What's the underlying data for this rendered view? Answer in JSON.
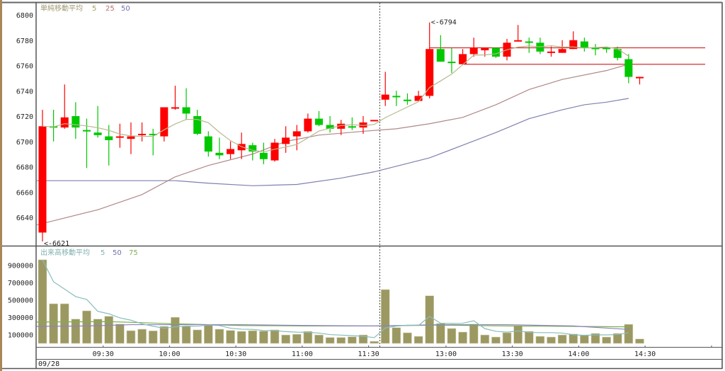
{
  "chart_data": {
    "type": "candlestick",
    "date_label": "09/28",
    "price_legend": {
      "title": "単純移動平均",
      "periods": [
        "5",
        "25",
        "50"
      ]
    },
    "volume_legend": {
      "title": "出来高移動平均",
      "periods": [
        "5",
        "50",
        "75"
      ]
    },
    "price_axis": {
      "ylim": [
        6620,
        6806
      ],
      "ticks": [
        "6640",
        "6660",
        "6680",
        "6700",
        "6720",
        "6740",
        "6760",
        "6780",
        "6800"
      ]
    },
    "volume_axis": {
      "ylim": [
        0,
        980000
      ],
      "ticks": [
        "100000",
        "300000",
        "500000",
        "700000",
        "900000"
      ]
    },
    "time_ticks": [
      {
        "index": 6,
        "label": "09:30"
      },
      {
        "index": 12,
        "label": "10:00"
      },
      {
        "index": 18,
        "label": "10:30"
      },
      {
        "index": 24,
        "label": "11:00"
      },
      {
        "index": 30,
        "label": "11:30"
      },
      {
        "index": 37,
        "label": "13:00"
      },
      {
        "index": 43,
        "label": "13:30"
      },
      {
        "index": 49,
        "label": "14:00"
      },
      {
        "index": 55,
        "label": "14:30"
      }
    ],
    "session_break_after_index": 30,
    "annotations": [
      {
        "index": 35,
        "price": 6794,
        "text": "<-6794",
        "color": "#ff3030"
      },
      {
        "index": 0,
        "price": 6621,
        "text": "<-6621",
        "color": "#30c030"
      }
    ],
    "horizontal_lines": [
      {
        "from_index": 35,
        "price": 6774
      },
      {
        "from_index": 38,
        "price": 6761
      }
    ],
    "colors": {
      "up": "#ff0000",
      "down": "#00c800",
      "ma5": "#b8b890",
      "ma25": "#b08888",
      "ma50": "#8080b0",
      "vol": "#9c9862",
      "vma5": "#88bcbc",
      "vma50": "#8a84c0",
      "vma75": "#7cb050",
      "hline": "#d03030"
    },
    "candles": [
      [
        6628,
        6725,
        6621,
        6712,
        960000
      ],
      [
        6712,
        6725,
        6700,
        6711,
        455000
      ],
      [
        6711,
        6745,
        6710,
        6719,
        455000
      ],
      [
        6720,
        6731,
        6702,
        6711,
        279000
      ],
      [
        6709,
        6718,
        6679,
        6708,
        374000
      ],
      [
        6707,
        6728,
        6703,
        6705,
        279000
      ],
      [
        6704,
        6713,
        6681,
        6701,
        311000
      ],
      [
        6703,
        6714,
        6695,
        6704,
        222000
      ],
      [
        6702,
        6715,
        6690,
        6704,
        146000
      ],
      [
        6705,
        6715,
        6700,
        6706,
        163000
      ],
      [
        6706,
        6710,
        6689,
        6705,
        144000
      ],
      [
        6704,
        6727,
        6700,
        6727,
        195000
      ],
      [
        6726,
        6744,
        6725,
        6727,
        300000
      ],
      [
        6727,
        6742,
        6717,
        6722,
        195000
      ],
      [
        6720,
        6725,
        6705,
        6706,
        155000
      ],
      [
        6704,
        6708,
        6688,
        6692,
        210000
      ],
      [
        6691,
        6703,
        6686,
        6689,
        163000
      ],
      [
        6690,
        6700,
        6686,
        6694,
        149000
      ],
      [
        6693,
        6707,
        6686,
        6698,
        138000
      ],
      [
        6697,
        6699,
        6685,
        6692,
        146000
      ],
      [
        6691,
        6699,
        6682,
        6686,
        141000
      ],
      [
        6685,
        6702,
        6684,
        6699,
        155000
      ],
      [
        6698,
        6712,
        6691,
        6703,
        97000
      ],
      [
        6704,
        6713,
        6693,
        6708,
        105000
      ],
      [
        6708,
        6722,
        6707,
        6718,
        138000
      ],
      [
        6718,
        6724,
        6712,
        6713,
        97000
      ],
      [
        6713,
        6720,
        6707,
        6710,
        68000
      ],
      [
        6710,
        6717,
        6705,
        6714,
        68000
      ],
      [
        6712,
        6719,
        6709,
        6711,
        76000
      ],
      [
        6711,
        6720,
        6706,
        6715,
        97000
      ],
      [
        6716,
        6717,
        6716,
        6717,
        24000
      ],
      [
        6733,
        6755,
        6728,
        6737,
        618000
      ],
      [
        6736,
        6740,
        6728,
        6735,
        181000
      ],
      [
        6733,
        6738,
        6729,
        6732,
        122000
      ],
      [
        6732,
        6740,
        6732,
        6736,
        81000
      ],
      [
        6736,
        6794,
        6734,
        6773,
        547000
      ],
      [
        6773,
        6784,
        6763,
        6763,
        228000
      ],
      [
        6763,
        6774,
        6754,
        6762,
        171000
      ],
      [
        6761,
        6773,
        6761,
        6769,
        130000
      ],
      [
        6769,
        6782,
        6767,
        6774,
        222000
      ],
      [
        6772,
        6774,
        6767,
        6774,
        97000
      ],
      [
        6774,
        6774,
        6766,
        6767,
        73000
      ],
      [
        6767,
        6781,
        6764,
        6778,
        122000
      ],
      [
        6779,
        6792,
        6779,
        6780,
        203000
      ],
      [
        6779,
        6782,
        6770,
        6778,
        138000
      ],
      [
        6778,
        6782,
        6769,
        6771,
        81000
      ],
      [
        6770,
        6775,
        6767,
        6771,
        73000
      ],
      [
        6770,
        6780,
        6770,
        6773,
        97000
      ],
      [
        6773,
        6787,
        6773,
        6780,
        108000
      ],
      [
        6779,
        6782,
        6771,
        6774,
        97000
      ],
      [
        6774,
        6777,
        6768,
        6773,
        114000
      ],
      [
        6774,
        6775,
        6770,
        6773,
        73000
      ],
      [
        6773,
        6775,
        6764,
        6766,
        114000
      ],
      [
        6765,
        6769,
        6746,
        6751,
        219000
      ],
      [
        6750,
        6751,
        6745,
        6751,
        51000
      ]
    ],
    "ma25": [
      [
        0,
        6634
      ],
      [
        5,
        6646
      ],
      [
        9,
        6658
      ],
      [
        12,
        6672
      ],
      [
        15,
        6681
      ],
      [
        19,
        6690
      ],
      [
        22,
        6700
      ],
      [
        25,
        6705
      ],
      [
        29,
        6708
      ],
      [
        32,
        6710
      ],
      [
        35,
        6714
      ],
      [
        38,
        6719
      ],
      [
        41,
        6729
      ],
      [
        44,
        6741
      ],
      [
        47,
        6749
      ],
      [
        51,
        6756
      ],
      [
        53,
        6761
      ]
    ],
    "ma50": [
      [
        0,
        6669
      ],
      [
        3,
        6669
      ],
      [
        9,
        6669
      ],
      [
        12,
        6669
      ],
      [
        15,
        6667
      ],
      [
        19,
        6665
      ],
      [
        23,
        6666
      ],
      [
        27,
        6671
      ],
      [
        30,
        6676
      ],
      [
        35,
        6687
      ],
      [
        38,
        6697
      ],
      [
        41,
        6707
      ],
      [
        44,
        6718
      ],
      [
        47,
        6725
      ],
      [
        49,
        6729
      ],
      [
        51,
        6731
      ],
      [
        53,
        6734
      ]
    ],
    "vma50": [
      [
        0,
        195000
      ],
      [
        4,
        200000
      ],
      [
        8,
        215000
      ],
      [
        12,
        215000
      ],
      [
        18,
        215000
      ],
      [
        24,
        205000
      ],
      [
        30,
        200000
      ],
      [
        36,
        215000
      ],
      [
        42,
        215000
      ],
      [
        48,
        200000
      ],
      [
        53,
        160000
      ]
    ],
    "vma75": [
      [
        0,
        245000
      ],
      [
        6,
        250000
      ],
      [
        12,
        225000
      ],
      [
        18,
        205000
      ],
      [
        24,
        200000
      ],
      [
        30,
        200000
      ],
      [
        36,
        210000
      ],
      [
        42,
        200000
      ],
      [
        48,
        195000
      ],
      [
        53,
        190000
      ]
    ]
  }
}
